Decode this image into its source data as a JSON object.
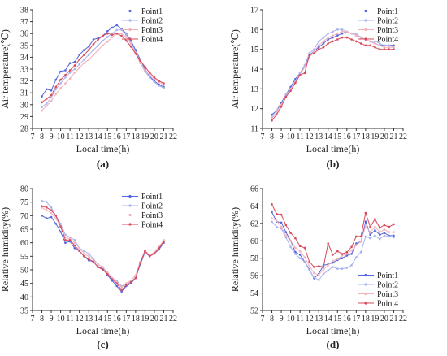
{
  "colors": {
    "Point1": "#5566dd",
    "Point2": "#a9b4ee",
    "Point3": "#f2b3ba",
    "Point4": "#d94a5c"
  },
  "chart_data": [
    {
      "type": "line",
      "panel_label": "(a)",
      "xlabel": "Local time(h)",
      "ylabel": "Air temperature(℃)",
      "xlim": [
        7,
        22
      ],
      "ylim": [
        28,
        38
      ],
      "xticks": [
        7,
        8,
        9,
        10,
        11,
        12,
        13,
        14,
        15,
        16,
        17,
        18,
        19,
        20,
        21,
        22
      ],
      "yticks": [
        28,
        29,
        30,
        31,
        32,
        33,
        34,
        35,
        36,
        37,
        38
      ],
      "legend": "top-right",
      "x": [
        8,
        8.5,
        9,
        9.5,
        10,
        10.5,
        11,
        11.5,
        12,
        12.5,
        13,
        13.5,
        14,
        14.5,
        15,
        15.5,
        16,
        16.5,
        17,
        17.5,
        18,
        18.5,
        19,
        19.5,
        20,
        20.5,
        21
      ],
      "series": [
        {
          "name": "Point1",
          "values": [
            30.7,
            31.3,
            31.2,
            32.1,
            32.8,
            32.9,
            33.5,
            33.6,
            34.2,
            34.6,
            34.9,
            35.5,
            35.6,
            35.8,
            36.2,
            36.5,
            36.7,
            36.4,
            36.0,
            35.4,
            34.6,
            33.8,
            33.0,
            32.4,
            32.0,
            31.7,
            31.5
          ]
        },
        {
          "name": "Point2",
          "values": [
            29.8,
            30.1,
            30.6,
            31.3,
            31.8,
            32.3,
            32.7,
            33.0,
            33.4,
            33.8,
            34.2,
            34.6,
            35.0,
            35.4,
            35.7,
            36.0,
            36.3,
            36.3,
            35.9,
            35.3,
            34.4,
            33.5,
            32.8,
            32.3,
            31.9,
            31.6,
            31.4
          ]
        },
        {
          "name": "Point3",
          "values": [
            29.5,
            29.9,
            30.3,
            30.9,
            31.4,
            31.8,
            32.2,
            32.7,
            33.1,
            33.5,
            33.8,
            34.2,
            34.6,
            35.0,
            35.3,
            35.7,
            36.0,
            36.0,
            35.7,
            35.1,
            34.3,
            33.5,
            32.9,
            32.5,
            32.2,
            31.9,
            31.7
          ]
        },
        {
          "name": "Point4",
          "values": [
            30.2,
            30.5,
            30.8,
            31.5,
            32.1,
            32.5,
            32.9,
            33.3,
            33.8,
            34.2,
            34.6,
            35.1,
            35.5,
            35.8,
            36.0,
            35.9,
            36.0,
            35.8,
            35.4,
            34.9,
            34.3,
            33.7,
            33.2,
            32.7,
            32.3,
            32.0,
            31.8
          ]
        }
      ]
    },
    {
      "type": "line",
      "panel_label": "(b)",
      "xlabel": "Local time(h)",
      "ylabel": "Air temperature(℃)",
      "xlim": [
        7,
        22
      ],
      "ylim": [
        11,
        17
      ],
      "xticks": [
        7,
        8,
        9,
        10,
        11,
        12,
        13,
        14,
        15,
        16,
        17,
        18,
        19,
        20,
        21,
        22
      ],
      "yticks": [
        11,
        12,
        13,
        14,
        15,
        16,
        17
      ],
      "legend": "top-right",
      "x": [
        8,
        8.5,
        9,
        9.5,
        10,
        10.5,
        11,
        11.5,
        12,
        12.5,
        13,
        13.5,
        14,
        14.5,
        15,
        15.5,
        16,
        16.5,
        17,
        17.5,
        18,
        18.5,
        19,
        19.5,
        20,
        20.5,
        21
      ],
      "series": [
        {
          "name": "Point1",
          "values": [
            11.7,
            11.9,
            12.3,
            12.7,
            13.1,
            13.5,
            13.8,
            14.1,
            14.7,
            14.9,
            15.1,
            15.3,
            15.5,
            15.6,
            15.7,
            15.8,
            15.9,
            15.8,
            15.7,
            15.6,
            15.5,
            15.4,
            15.3,
            15.2,
            15.2,
            15.2,
            15.2
          ]
        },
        {
          "name": "Point2",
          "values": [
            11.6,
            11.9,
            12.2,
            12.7,
            13.0,
            13.4,
            13.8,
            14.2,
            14.8,
            15.0,
            15.4,
            15.6,
            15.8,
            15.9,
            16.0,
            16.0,
            15.9,
            15.8,
            15.8,
            15.6,
            15.5,
            15.4,
            15.4,
            15.3,
            15.2,
            15.2,
            15.1
          ]
        },
        {
          "name": "Point3",
          "values": [
            11.5,
            11.8,
            12.2,
            12.6,
            13.0,
            13.3,
            13.7,
            14.1,
            14.6,
            14.9,
            15.2,
            15.4,
            15.6,
            15.7,
            15.8,
            15.9,
            15.9,
            15.8,
            15.7,
            15.6,
            15.5,
            15.4,
            15.3,
            15.2,
            15.1,
            15.1,
            15.1
          ]
        },
        {
          "name": "Point4",
          "values": [
            11.4,
            11.7,
            12.1,
            12.6,
            12.9,
            13.3,
            13.7,
            13.8,
            14.7,
            14.8,
            15.0,
            15.1,
            15.3,
            15.4,
            15.5,
            15.6,
            15.6,
            15.5,
            15.4,
            15.3,
            15.2,
            15.2,
            15.1,
            15.0,
            15.0,
            15.0,
            15.0
          ]
        }
      ]
    },
    {
      "type": "line",
      "panel_label": "(c)",
      "xlabel": "Local time(h)",
      "ylabel": "Relative humidity(%)",
      "xlim": [
        7,
        22
      ],
      "ylim": [
        35,
        80
      ],
      "xticks": [
        7,
        8,
        9,
        10,
        11,
        12,
        13,
        14,
        15,
        16,
        17,
        18,
        19,
        20,
        21,
        22
      ],
      "yticks": [
        35,
        40,
        45,
        50,
        55,
        60,
        65,
        70,
        75,
        80
      ],
      "legend": "top-right",
      "x": [
        8,
        8.5,
        9,
        9.5,
        10,
        10.5,
        11,
        11.5,
        12,
        12.5,
        13,
        13.5,
        14,
        14.5,
        15,
        15.5,
        16,
        16.5,
        17,
        17.5,
        18,
        18.5,
        19,
        19.5,
        20,
        20.5,
        21
      ],
      "series": [
        {
          "name": "Point1",
          "values": [
            70,
            69,
            69.5,
            67,
            64,
            60,
            60.5,
            58,
            57,
            55,
            53.5,
            53,
            51,
            50.5,
            48,
            46,
            44,
            42,
            44,
            45,
            47,
            52,
            56.5,
            55,
            56,
            57.5,
            60
          ]
        },
        {
          "name": "Point2",
          "values": [
            75.5,
            75,
            73,
            70,
            67,
            63,
            62,
            61,
            58,
            57,
            56,
            54,
            52,
            51,
            49,
            47,
            46,
            44,
            45,
            46,
            48,
            53,
            56.5,
            55.5,
            56,
            58,
            60.5
          ]
        },
        {
          "name": "Point3",
          "values": [
            73,
            72,
            71,
            69,
            66,
            62,
            61.5,
            60,
            58,
            56,
            55,
            53.5,
            52,
            51,
            49,
            47,
            45.5,
            43.5,
            45,
            46,
            48,
            53,
            57,
            55.5,
            56.5,
            58.5,
            61
          ]
        },
        {
          "name": "Point4",
          "values": [
            73.5,
            73,
            72,
            70,
            66,
            61,
            61,
            59,
            57,
            55,
            54,
            53,
            51,
            50,
            48.5,
            46.5,
            45,
            42.5,
            44.5,
            45.5,
            47,
            52.5,
            57,
            55,
            56,
            58,
            60.5
          ]
        }
      ]
    },
    {
      "type": "line",
      "panel_label": "(d)",
      "xlabel": "Local time(h)",
      "ylabel": "Relative humidity(%)",
      "xlim": [
        7,
        22
      ],
      "ylim": [
        52,
        66
      ],
      "xticks": [
        7,
        8,
        9,
        10,
        11,
        12,
        13,
        14,
        15,
        16,
        17,
        18,
        19,
        20,
        21,
        22
      ],
      "yticks": [
        52,
        54,
        56,
        58,
        60,
        62,
        64,
        66
      ],
      "legend": "bottom-right",
      "x": [
        8,
        8.5,
        9,
        9.5,
        10,
        10.5,
        11,
        11.5,
        12,
        12.5,
        13,
        13.5,
        14,
        14.5,
        15,
        15.5,
        16,
        16.5,
        17,
        17.5,
        18,
        18.5,
        19,
        19.5,
        20,
        20.5,
        21
      ],
      "series": [
        {
          "name": "Point1",
          "values": [
            63.3,
            62.2,
            62.1,
            61.0,
            60.0,
            58.7,
            58.4,
            57.6,
            56.7,
            55.7,
            56.2,
            57.2,
            57.3,
            57.5,
            57.8,
            58.0,
            58.3,
            58.5,
            59.7,
            59.9,
            62.2,
            60.7,
            61.2,
            60.7,
            60.9,
            60.6,
            60.6
          ]
        },
        {
          "name": "Point2",
          "values": [
            62.2,
            61.6,
            61.4,
            60.4,
            59.3,
            58.5,
            58.0,
            57.6,
            56.6,
            55.8,
            55.5,
            56.2,
            56.6,
            57.0,
            56.8,
            56.8,
            56.9,
            57.2,
            58.1,
            58.7,
            60.5,
            60.3,
            60.6,
            60.2,
            60.6,
            60.5,
            60.4
          ]
        },
        {
          "name": "Point3",
          "values": [
            62.6,
            62.3,
            61.6,
            60.6,
            60.0,
            59.2,
            58.8,
            58.1,
            57.1,
            56.3,
            56.1,
            56.7,
            57.2,
            57.7,
            57.9,
            58.3,
            58.5,
            58.9,
            59.5,
            59.9,
            61.7,
            61.0,
            61.6,
            61.0,
            61.3,
            61.0,
            61.0
          ]
        },
        {
          "name": "Point4",
          "values": [
            64.2,
            63.1,
            63.0,
            61.8,
            60.9,
            60.3,
            59.4,
            59.2,
            57.6,
            57.0,
            57.1,
            57.0,
            59.7,
            58.4,
            58.8,
            58.5,
            58.7,
            59.3,
            60.5,
            60.5,
            63.2,
            61.6,
            62.5,
            61.5,
            61.8,
            61.6,
            61.9
          ]
        }
      ]
    }
  ]
}
